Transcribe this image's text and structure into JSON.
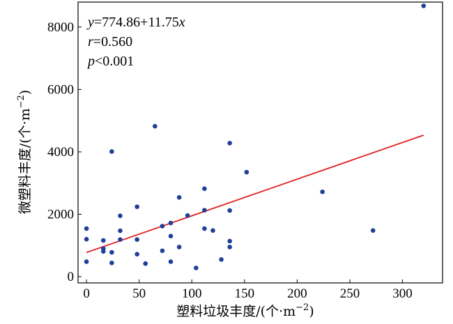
{
  "chart_data": {
    "type": "scatter",
    "xlabel_main": "塑料垃圾丰度/(个·m",
    "xlabel_sup": "−2",
    "xlabel_close": ")",
    "ylabel_main": "微塑料丰度/(个·m",
    "ylabel_sup": "−2",
    "ylabel_close": ")",
    "xlim": [
      -8,
      338
    ],
    "ylim": [
      -200,
      8800
    ],
    "xticks": [
      0,
      50,
      100,
      150,
      200,
      250,
      300
    ],
    "yticks": [
      0,
      2000,
      4000,
      6000,
      8000
    ],
    "point_color": "#1f3f99",
    "line_color": "#e02020",
    "points": [
      {
        "x": 0,
        "y": 1540
      },
      {
        "x": 0,
        "y": 1200
      },
      {
        "x": 0,
        "y": 480
      },
      {
        "x": 16,
        "y": 1160
      },
      {
        "x": 16,
        "y": 900
      },
      {
        "x": 16,
        "y": 810
      },
      {
        "x": 24,
        "y": 4010
      },
      {
        "x": 24,
        "y": 780
      },
      {
        "x": 24,
        "y": 440
      },
      {
        "x": 32,
        "y": 1950
      },
      {
        "x": 32,
        "y": 1470
      },
      {
        "x": 32,
        "y": 1190
      },
      {
        "x": 48,
        "y": 2240
      },
      {
        "x": 48,
        "y": 1190
      },
      {
        "x": 48,
        "y": 720
      },
      {
        "x": 56,
        "y": 420
      },
      {
        "x": 65,
        "y": 4820
      },
      {
        "x": 72,
        "y": 1620
      },
      {
        "x": 72,
        "y": 830
      },
      {
        "x": 80,
        "y": 1720
      },
      {
        "x": 80,
        "y": 1300
      },
      {
        "x": 80,
        "y": 480
      },
      {
        "x": 88,
        "y": 2540
      },
      {
        "x": 88,
        "y": 950
      },
      {
        "x": 96,
        "y": 1960
      },
      {
        "x": 104,
        "y": 280
      },
      {
        "x": 112,
        "y": 2820
      },
      {
        "x": 112,
        "y": 2130
      },
      {
        "x": 112,
        "y": 1540
      },
      {
        "x": 120,
        "y": 1480
      },
      {
        "x": 128,
        "y": 550
      },
      {
        "x": 136,
        "y": 4280
      },
      {
        "x": 136,
        "y": 2120
      },
      {
        "x": 136,
        "y": 1140
      },
      {
        "x": 136,
        "y": 950
      },
      {
        "x": 152,
        "y": 3350
      },
      {
        "x": 224,
        "y": 2720
      },
      {
        "x": 272,
        "y": 1480
      },
      {
        "x": 320,
        "y": 8680
      }
    ],
    "fit": {
      "intercept": 774.86,
      "slope": 11.75,
      "x_range": [
        0,
        320
      ]
    },
    "annotations": {
      "eq_y": "y",
      "eq_rest": "=774.86+11.75",
      "eq_x": "x",
      "r_sym": "r",
      "r_rest": "=0.560",
      "p_sym": "p",
      "p_rest": "<0.001"
    }
  }
}
